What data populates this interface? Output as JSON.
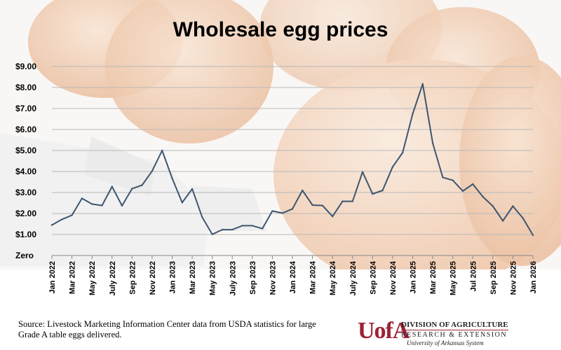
{
  "chart_data": {
    "type": "line",
    "title": "Wholesale egg prices",
    "xlabel": "",
    "ylabel": "",
    "ylim": [
      0,
      9
    ],
    "yticks": [
      {
        "value": 0,
        "label": "Zero"
      },
      {
        "value": 1,
        "label": "$1.00"
      },
      {
        "value": 2,
        "label": "$2.00"
      },
      {
        "value": 3,
        "label": "$3.00"
      },
      {
        "value": 4,
        "label": "$4.00"
      },
      {
        "value": 5,
        "label": "$5.00"
      },
      {
        "value": 6,
        "label": "$6.00"
      },
      {
        "value": 7,
        "label": "$7.00"
      },
      {
        "value": 8,
        "label": "$8.00"
      },
      {
        "value": 9,
        "label": "$9.00"
      }
    ],
    "grid": true,
    "xtick_labels": [
      "Jan 2022",
      "Mar 2022",
      "May 2022",
      "July 2022",
      "Sep 2022",
      "Nov 2022",
      "Jan 2023",
      "Mar 2023",
      "May 2023",
      "July 2023",
      "Sep 2023",
      "Nov 2023",
      "Jan 2024",
      "Mar 2024",
      "May 2024",
      "July 2024",
      "Sep 2024",
      "Nov 2024",
      "Jan 2025",
      "Mar 2025",
      "May 2025",
      "Jul 2025",
      "Sep 2025",
      "Nov 2025",
      "Jan 2026"
    ],
    "x": [
      "Jan 2022",
      "Feb 2022",
      "Mar 2022",
      "Apr 2022",
      "May 2022",
      "Jun 2022",
      "Jul 2022",
      "Aug 2022",
      "Sep 2022",
      "Oct 2022",
      "Nov 2022",
      "Dec 2022",
      "Jan 2023",
      "Feb 2023",
      "Mar 2023",
      "Apr 2023",
      "May 2023",
      "Jun 2023",
      "Jul 2023",
      "Aug 2023",
      "Sep 2023",
      "Oct 2023",
      "Nov 2023",
      "Dec 2023",
      "Jan 2024",
      "Feb 2024",
      "Mar 2024",
      "Apr 2024",
      "May 2024",
      "Jun 2024",
      "Jul 2024",
      "Aug 2024",
      "Sep 2024",
      "Oct 2024",
      "Nov 2024",
      "Dec 2024",
      "Jan 2025",
      "Feb 2025",
      "Mar 2025",
      "Apr 2025",
      "May 2025",
      "Jun 2025",
      "Jul 2025",
      "Aug 2025",
      "Sep 2025",
      "Oct 2025",
      "Nov 2025",
      "Dec 2025",
      "Jan 2026"
    ],
    "series": [
      {
        "values": [
          1.45,
          1.72,
          1.92,
          2.72,
          2.45,
          2.38,
          3.28,
          2.37,
          3.18,
          3.35,
          4.02,
          5.0,
          3.68,
          2.52,
          3.17,
          1.82,
          1.01,
          1.23,
          1.23,
          1.42,
          1.42,
          1.28,
          2.12,
          2.02,
          2.22,
          3.1,
          2.4,
          2.38,
          1.86,
          2.58,
          2.58,
          3.98,
          2.93,
          3.1,
          4.22,
          4.9,
          6.75,
          8.17,
          5.35,
          3.72,
          3.58,
          3.07,
          3.4,
          2.8,
          2.35,
          1.65,
          2.35,
          1.78,
          0.97
        ],
        "color": "#3e5670"
      }
    ]
  },
  "footer": {
    "source_line1": "Source: Livestock Marketing Information Center data from USDA statistics for large",
    "source_line2": "Grade A table eggs delivered."
  },
  "logo": {
    "mark": "UofA",
    "line1": "DIVISION OF AGRICULTURE",
    "line2": "RESEARCH & EXTENSION",
    "line3": "University of Arkansas System",
    "color": "#9d2235"
  },
  "colors": {
    "line": "#3e5670",
    "grid": "#b8b8b8",
    "egg": "#e7b896",
    "carton": "#eeeeee"
  }
}
